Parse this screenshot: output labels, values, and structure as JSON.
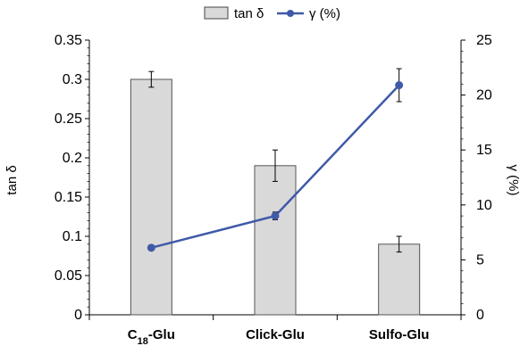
{
  "chart_data": {
    "type": "bar",
    "categories": [
      "C18-Glu",
      "Click-Glu",
      "Sulfo-Glu"
    ],
    "category_labels": [
      {
        "main": "C",
        "sub": "18",
        "rest": "-Glu"
      },
      {
        "main": "Click-Glu",
        "sub": "",
        "rest": ""
      },
      {
        "main": "Sulfo-Glu",
        "sub": "",
        "rest": ""
      }
    ],
    "series": [
      {
        "name": "tan δ",
        "type": "bar",
        "axis": "left",
        "values": [
          0.3,
          0.19,
          0.09
        ],
        "errors": [
          0.01,
          0.02,
          0.01
        ],
        "color": "#d9d9d9"
      },
      {
        "name": "γ (%)",
        "type": "line",
        "axis": "right",
        "values": [
          6.1,
          9.0,
          20.9
        ],
        "errors": [
          0.0,
          0.35,
          1.5
        ],
        "color": "#3f5aa8"
      }
    ],
    "ylabel": "tan δ",
    "y2label": "γ (%)",
    "ylim": [
      0,
      0.35
    ],
    "y2lim": [
      0,
      25
    ],
    "yticks": [
      "0",
      "0.05",
      "0.1",
      "0.15",
      "0.2",
      "0.25",
      "0.3",
      "0.35"
    ],
    "y2ticks": [
      "0",
      "5",
      "10",
      "15",
      "20",
      "25"
    ],
    "legend": {
      "position": "top-center",
      "bar_label": "tan δ",
      "line_label": "γ (%)"
    },
    "grid": false
  }
}
